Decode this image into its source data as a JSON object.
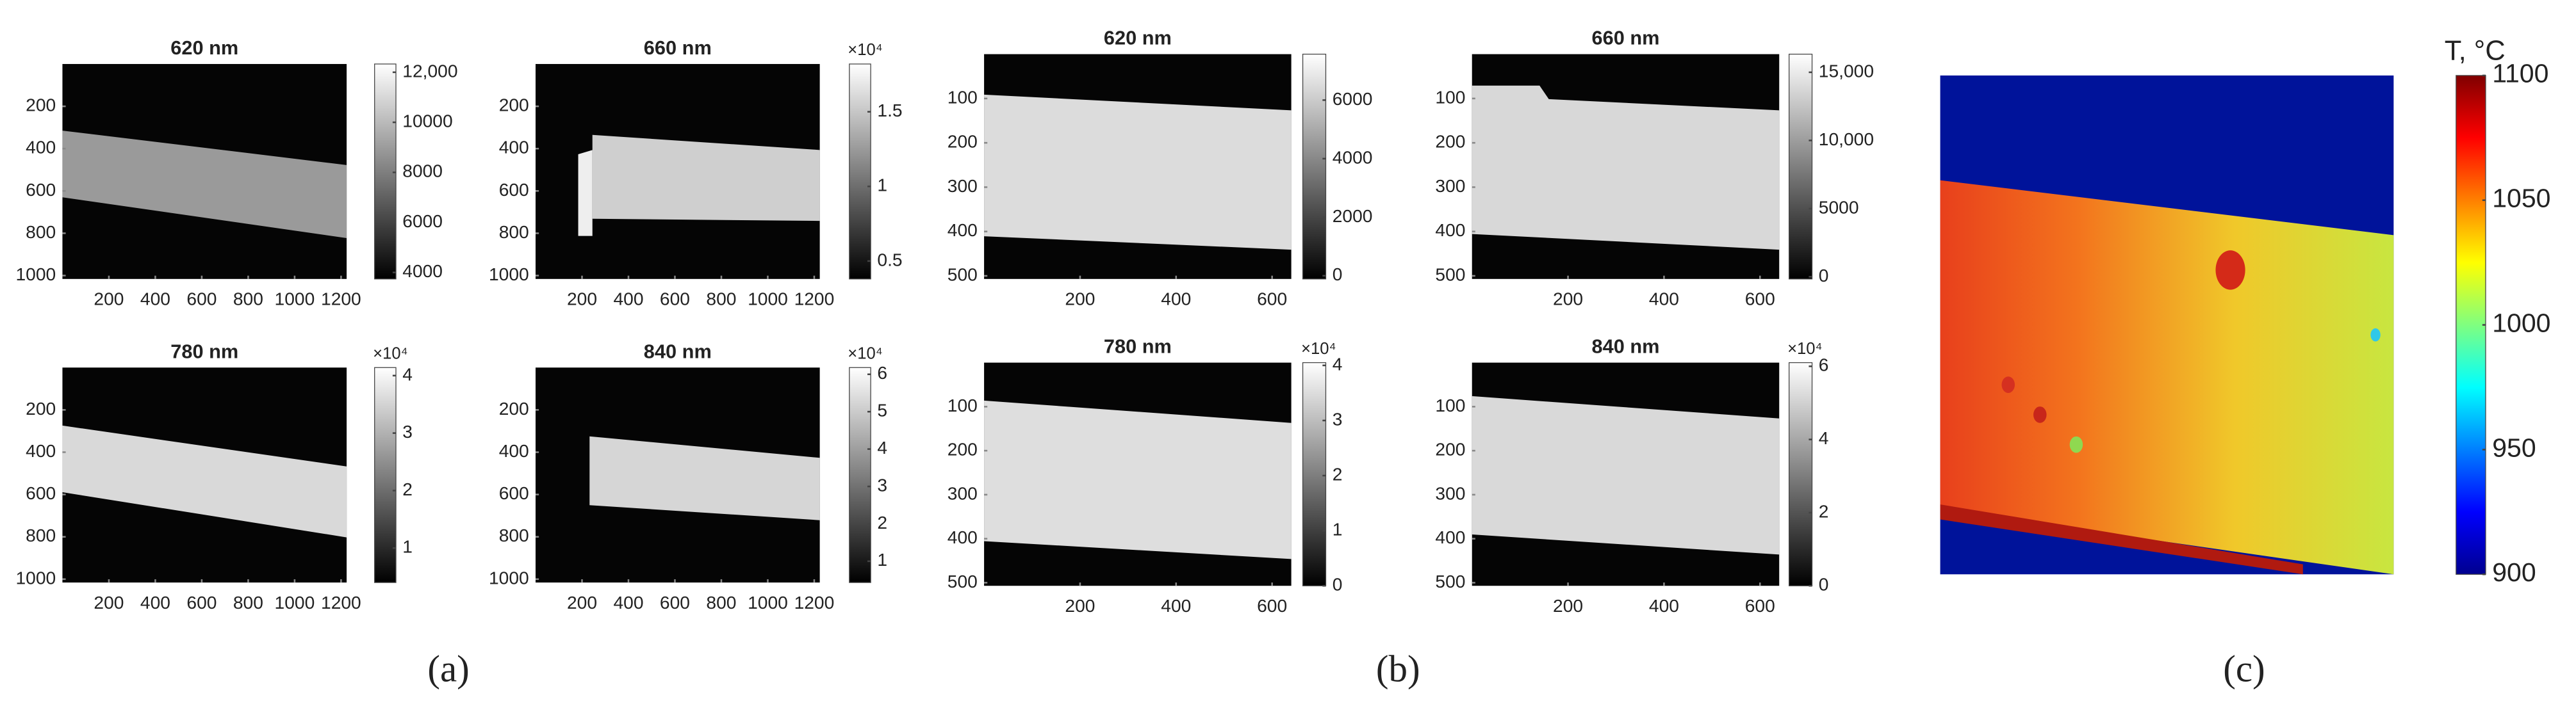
{
  "chart_data": [
    {
      "type": "image",
      "title": "620 nm",
      "xlim": [
        0,
        1224
      ],
      "ylim": [
        1016,
        0
      ],
      "xticks": [
        200,
        400,
        600,
        800,
        1000,
        1200
      ],
      "yticks": [
        200,
        400,
        600,
        800,
        1000
      ],
      "clim": [
        3740,
        12330
      ],
      "cticks": [
        4000,
        6000,
        8000,
        10000,
        {
          "value": 12000,
          "label": "12,000"
        }
      ]
    },
    {
      "type": "image",
      "title": "660 nm",
      "xlim": [
        0,
        1224
      ],
      "ylim": [
        1016,
        0
      ],
      "xticks": [
        200,
        400,
        600,
        800,
        1000,
        1200
      ],
      "yticks": [
        200,
        400,
        600,
        800,
        1000
      ],
      "clim": [
        0.38,
        1.82
      ],
      "cticks": [
        0.5,
        1,
        1.5
      ],
      "multiplier": "×10⁴"
    },
    {
      "type": "image",
      "title": "780 nm",
      "xlim": [
        0,
        1224
      ],
      "ylim": [
        1016,
        0
      ],
      "xticks": [
        200,
        400,
        600,
        800,
        1000,
        1200
      ],
      "yticks": [
        200,
        400,
        600,
        800,
        1000
      ],
      "clim": [
        0.4,
        4.14
      ],
      "cticks": [
        1,
        2,
        3,
        4
      ],
      "multiplier": "×10⁴"
    },
    {
      "type": "image",
      "title": "840 nm",
      "xlim": [
        0,
        1224
      ],
      "ylim": [
        1016,
        0
      ],
      "xticks": [
        200,
        400,
        600,
        800,
        1000,
        1200
      ],
      "yticks": [
        200,
        400,
        600,
        800,
        1000
      ],
      "clim": [
        0.43,
        6.18
      ],
      "cticks": [
        1,
        2,
        3,
        4,
        5,
        6
      ],
      "multiplier": "×10⁴"
    },
    {
      "type": "image",
      "title": "620 nm",
      "xlim": [
        0,
        640
      ],
      "ylim": [
        507,
        0
      ],
      "xticks": [
        200,
        400,
        600
      ],
      "yticks": [
        100,
        200,
        300,
        400,
        500
      ],
      "clim": [
        -110,
        7570
      ],
      "cticks": [
        0,
        2000,
        4000,
        6000
      ]
    },
    {
      "type": "image",
      "title": "660 nm",
      "xlim": [
        0,
        640
      ],
      "ylim": [
        507,
        0
      ],
      "xticks": [
        200,
        400,
        600
      ],
      "yticks": [
        100,
        200,
        300,
        400,
        500
      ],
      "clim": [
        -160,
        16330
      ],
      "cticks": [
        0,
        5000,
        {
          "value": 10000,
          "label": "10,000"
        },
        {
          "value": 15000,
          "label": "15,000"
        }
      ]
    },
    {
      "type": "image",
      "title": "780 nm",
      "xlim": [
        0,
        640
      ],
      "ylim": [
        507,
        0
      ],
      "xticks": [
        200,
        400,
        600
      ],
      "yticks": [
        100,
        200,
        300,
        400,
        500
      ],
      "clim": [
        0,
        4.05
      ],
      "cticks": [
        0,
        1,
        2,
        3,
        4
      ],
      "multiplier": "×10⁴"
    },
    {
      "type": "image",
      "title": "840 nm",
      "xlim": [
        0,
        640
      ],
      "ylim": [
        507,
        0
      ],
      "xticks": [
        200,
        400,
        600
      ],
      "yticks": [
        100,
        200,
        300,
        400,
        500
      ],
      "clim": [
        0,
        6.1
      ],
      "cticks": [
        0,
        2,
        4,
        6
      ],
      "multiplier": "×10⁴"
    },
    {
      "type": "image",
      "clim": [
        900,
        1100
      ],
      "cticks": [
        900,
        950,
        1000,
        1050,
        1100
      ],
      "colorbar_label": "T, °C",
      "colormap": "jet"
    }
  ],
  "panel_labels": [
    "(a)",
    "(b)",
    "(c)"
  ]
}
